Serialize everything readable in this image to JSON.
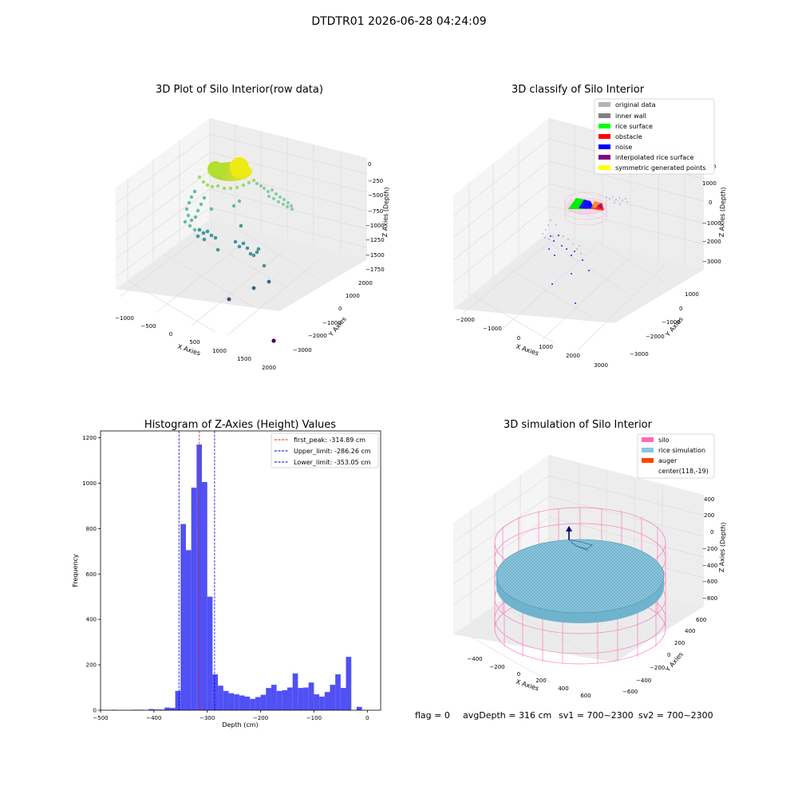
{
  "suptitle": "DTDTR01 2026-06-28 04:24:09",
  "footer": {
    "flag": "flag = 0",
    "avg_depth": "avgDepth = 316 cm",
    "sv1": "sv1 = 700~2300",
    "sv2": "sv2 = 700~2300"
  },
  "colors": {
    "histogram_bar": "#5050f5",
    "first_peak_line": "#d62728",
    "limit_line": "#0000cc",
    "silo": "#ff69b4",
    "rice_simulation": "#87c8e0",
    "auger": "#ff4500",
    "original_data": "#b4b4b4",
    "inner_wall": "#808080",
    "rice_surface": "#00ff00",
    "obstacle": "#ff0000",
    "noise": "#0000ff",
    "interpolated_rice_surface": "#800080",
    "symmetric_generated_points": "#ffff00"
  },
  "chart_data": [
    {
      "type": "scatter",
      "title": "3D Plot of Silo Interior(row data)",
      "xlabel": "X Axies",
      "ylabel": "Y Axies",
      "zlabel": "Z Axies (Depth)",
      "x_ticks": [
        "−1000",
        "−500",
        "0",
        "500",
        "1000",
        "1500",
        "2000"
      ],
      "y_ticks": [
        "−3000",
        "−2000",
        "−1000",
        "0",
        "1000",
        "2000"
      ],
      "z_ticks": [
        "0",
        "−250",
        "−500",
        "−750",
        "−1000",
        "−1250",
        "−1500",
        "−1750"
      ],
      "colormap": "viridis"
    },
    {
      "type": "scatter",
      "title": "3D classify of Silo Interior",
      "xlabel": "X Axies",
      "ylabel": "Y Axies",
      "zlabel": "Z Axies (Depth)",
      "x_ticks": [
        "−2000",
        "−1000",
        "0",
        "1000",
        "2000",
        "3000"
      ],
      "y_ticks": [
        "−3000",
        "−2000",
        "−1000",
        "0",
        "1000"
      ],
      "z_ticks": [
        "1000",
        "0",
        "−1000",
        "−2000",
        "−3000"
      ],
      "z_top_partial": "000",
      "legend": [
        "original data",
        "inner wall",
        "rice surface",
        "obstacle",
        "noise",
        "interpolated rice surface",
        "symmetric generated points"
      ],
      "legend_placement": "top-right"
    },
    {
      "type": "bar",
      "title": "Histogram of Z-Axies (Height) Values",
      "xlabel": "Depth (cm)",
      "ylabel": "Frequency",
      "xlim": [
        -500,
        25
      ],
      "ylim": [
        0,
        1230
      ],
      "x_ticks": [
        -500,
        -400,
        -300,
        -200,
        -100,
        0
      ],
      "x_tick_labels": [
        "−500",
        "−400",
        "−300",
        "−200",
        "−100",
        "0"
      ],
      "y_ticks": [
        0,
        200,
        400,
        600,
        800,
        1000,
        1200
      ],
      "bin_width": 10,
      "bin_starts": [
        -480,
        -470,
        -460,
        -450,
        -440,
        -430,
        -420,
        -410,
        -400,
        -390,
        -380,
        -370,
        -360,
        -350,
        -340,
        -330,
        -320,
        -310,
        -300,
        -290,
        -280,
        -270,
        -260,
        -250,
        -240,
        -230,
        -220,
        -210,
        -200,
        -190,
        -180,
        -170,
        -160,
        -150,
        -140,
        -130,
        -120,
        -110,
        -100,
        -90,
        -80,
        -70,
        -60,
        -50,
        -40,
        -30,
        -20,
        -10,
        0
      ],
      "values": [
        2,
        0,
        0,
        0,
        2,
        2,
        0,
        5,
        3,
        3,
        12,
        10,
        85,
        820,
        705,
        980,
        1170,
        1005,
        500,
        158,
        108,
        85,
        75,
        70,
        65,
        60,
        50,
        58,
        68,
        98,
        112,
        85,
        88,
        100,
        162,
        98,
        100,
        122,
        70,
        60,
        80,
        112,
        158,
        98,
        235,
        0,
        15,
        0,
        0
      ],
      "vlines": [
        {
          "label": "first_peak: -314.89 cm",
          "x": -314.89,
          "style": "first_peak"
        },
        {
          "label": "Upper_limit: -286.26 cm",
          "x": -286.26,
          "style": "limit"
        },
        {
          "label": "Lower_limit: -353.05 cm",
          "x": -353.05,
          "style": "limit"
        }
      ],
      "legend_placement": "top-right"
    },
    {
      "type": "surface",
      "title": "3D simulation of Silo Interior",
      "xlabel": "X Axies",
      "ylabel": "Y Axies",
      "zlabel": "Z Axies (Depth)",
      "x_ticks": [
        "−400",
        "−200",
        "0",
        "200",
        "400",
        "600"
      ],
      "y_ticks": [
        "−600",
        "−400",
        "−200",
        "0",
        "200",
        "400",
        "600"
      ],
      "z_ticks": [
        "400",
        "200",
        "0",
        "−200",
        "−400",
        "−600",
        "−800"
      ],
      "legend": [
        "silo",
        "rice simulation",
        "auger",
        "center(118,-19)"
      ],
      "legend_placement": "top-right"
    }
  ]
}
